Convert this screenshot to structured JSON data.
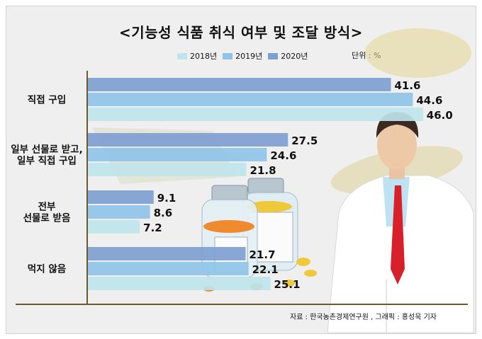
{
  "chart_data": {
    "type": "bar",
    "orientation": "horizontal",
    "title": "<기능성 식품 취식 여부 및 조달 방식>",
    "unit": "단위 : %",
    "categories": [
      "직접 구입",
      "일부 선물로 받고,\n일부 직접 구입",
      "전부\n선물로 받음",
      "먹지 않음"
    ],
    "series": [
      {
        "name": "2018년",
        "color": "#bfe4ec",
        "values": [
          46.0,
          21.8,
          7.2,
          25.1
        ]
      },
      {
        "name": "2019년",
        "color": "#8fc4e8",
        "values": [
          44.6,
          24.6,
          8.6,
          22.1
        ]
      },
      {
        "name": "2020년",
        "color": "#7e9fd1",
        "values": [
          41.6,
          27.5,
          9.1,
          21.7
        ]
      }
    ],
    "xlim": [
      0,
      50
    ],
    "grid": false,
    "legend": "top-center"
  },
  "source": "자료 : 한국농촌경제연구원 , 그래픽 : 홍성욱 기자",
  "colors": {
    "axis": "#6b5a2e",
    "background": "#efefef"
  }
}
